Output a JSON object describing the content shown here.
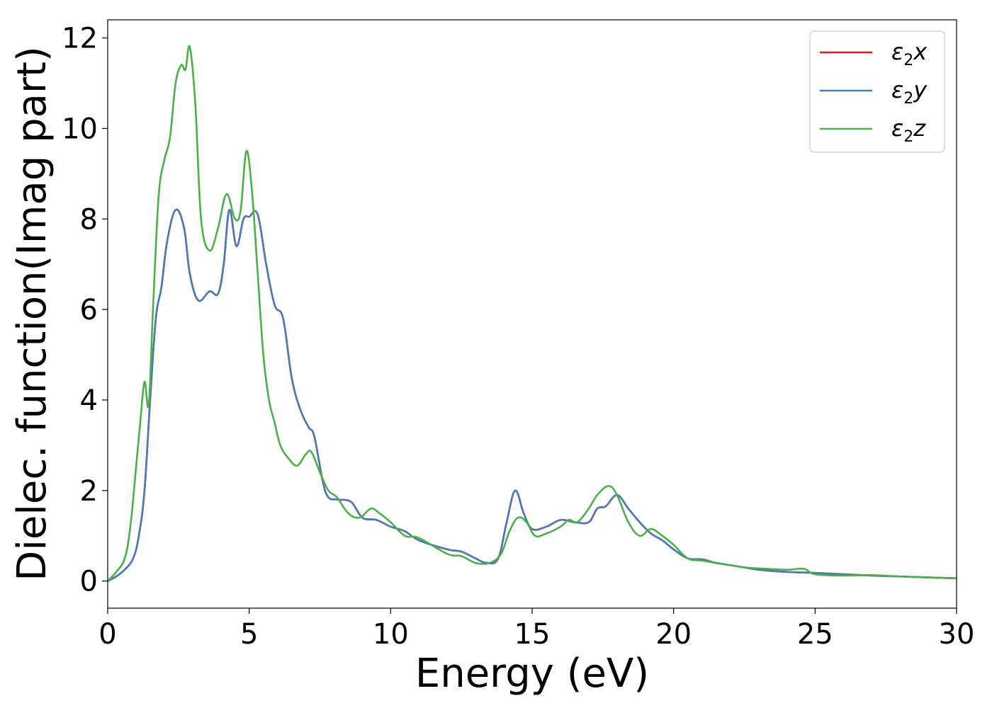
{
  "chart_data": {
    "type": "line",
    "title": "",
    "xlabel": "Energy (eV)",
    "ylabel": "Dielec. function(Imag part)",
    "xlim": [
      0,
      30
    ],
    "ylim": [
      -0.6,
      12.4
    ],
    "xticks": [
      0,
      5,
      10,
      15,
      20,
      25,
      30
    ],
    "yticks": [
      0,
      2,
      4,
      6,
      8,
      10,
      12
    ],
    "grid": false,
    "legend_position": "top-right",
    "series": [
      {
        "name": "ε₂x",
        "legend_sub": "2",
        "legend_var": "x",
        "color": "#e41a1c",
        "x": [
          0,
          0.3,
          0.6,
          0.9,
          1.1,
          1.3,
          1.5,
          1.7,
          1.9,
          2.1,
          2.4,
          2.7,
          2.9,
          3.2,
          3.6,
          3.9,
          4.1,
          4.3,
          4.55,
          4.8,
          5.0,
          5.3,
          5.6,
          5.9,
          6.2,
          6.5,
          6.8,
          7.1,
          7.3,
          7.6,
          7.8,
          8.1,
          8.6,
          9.0,
          9.5,
          10.0,
          10.5,
          11.0,
          12.0,
          12.5,
          13.0,
          13.4,
          13.8,
          14.1,
          14.4,
          14.7,
          15.0,
          15.5,
          16.0,
          16.5,
          17.0,
          17.3,
          17.6,
          18.0,
          18.4,
          18.8,
          19.2,
          19.6,
          20.0,
          20.5,
          21.0,
          21.5,
          22.0,
          22.5,
          23.0,
          24.0,
          25.0,
          26.0,
          27.0,
          28.0,
          29.0,
          30.0
        ],
        "values": [
          0,
          0.1,
          0.25,
          0.5,
          1.0,
          2.0,
          4.0,
          5.8,
          6.5,
          7.5,
          8.2,
          7.8,
          6.8,
          6.2,
          6.4,
          6.35,
          7.0,
          8.2,
          7.4,
          8.0,
          8.05,
          8.1,
          7.0,
          6.1,
          5.8,
          4.5,
          3.8,
          3.4,
          3.2,
          2.2,
          1.85,
          1.8,
          1.75,
          1.4,
          1.35,
          1.2,
          1.1,
          0.9,
          0.7,
          0.65,
          0.5,
          0.4,
          0.5,
          1.3,
          2.0,
          1.5,
          1.15,
          1.2,
          1.35,
          1.3,
          1.3,
          1.6,
          1.65,
          1.9,
          1.6,
          1.3,
          1.05,
          0.9,
          0.7,
          0.5,
          0.48,
          0.4,
          0.35,
          0.3,
          0.25,
          0.2,
          0.18,
          0.15,
          0.12,
          0.1,
          0.08,
          0.06
        ]
      },
      {
        "name": "ε₂y",
        "legend_sub": "2",
        "legend_var": "y",
        "color": "#4a7ab8",
        "x": [
          0,
          0.3,
          0.6,
          0.9,
          1.1,
          1.3,
          1.5,
          1.7,
          1.9,
          2.1,
          2.4,
          2.7,
          2.9,
          3.2,
          3.6,
          3.9,
          4.1,
          4.3,
          4.55,
          4.8,
          5.0,
          5.3,
          5.6,
          5.9,
          6.2,
          6.5,
          6.8,
          7.1,
          7.3,
          7.6,
          7.8,
          8.1,
          8.6,
          9.0,
          9.5,
          10.0,
          10.5,
          11.0,
          12.0,
          12.5,
          13.0,
          13.4,
          13.8,
          14.1,
          14.4,
          14.7,
          15.0,
          15.5,
          16.0,
          16.5,
          17.0,
          17.3,
          17.6,
          18.0,
          18.4,
          18.8,
          19.2,
          19.6,
          20.0,
          20.5,
          21.0,
          21.5,
          22.0,
          22.5,
          23.0,
          24.0,
          25.0,
          26.0,
          27.0,
          28.0,
          29.0,
          30.0
        ],
        "values": [
          0,
          0.1,
          0.25,
          0.5,
          1.0,
          2.0,
          4.0,
          5.8,
          6.5,
          7.5,
          8.2,
          7.8,
          6.8,
          6.2,
          6.4,
          6.35,
          7.0,
          8.2,
          7.4,
          8.0,
          8.05,
          8.1,
          7.0,
          6.1,
          5.8,
          4.5,
          3.8,
          3.4,
          3.2,
          2.2,
          1.85,
          1.8,
          1.75,
          1.4,
          1.35,
          1.2,
          1.1,
          0.9,
          0.7,
          0.65,
          0.5,
          0.4,
          0.5,
          1.3,
          2.0,
          1.5,
          1.15,
          1.2,
          1.35,
          1.3,
          1.3,
          1.6,
          1.65,
          1.9,
          1.6,
          1.3,
          1.05,
          0.9,
          0.7,
          0.5,
          0.48,
          0.4,
          0.35,
          0.3,
          0.25,
          0.2,
          0.18,
          0.15,
          0.12,
          0.1,
          0.08,
          0.06
        ]
      },
      {
        "name": "ε₂z",
        "legend_sub": "2",
        "legend_var": "z",
        "color": "#4daf4a",
        "x": [
          0,
          0.3,
          0.6,
          0.8,
          1.0,
          1.15,
          1.3,
          1.45,
          1.6,
          1.8,
          2.0,
          2.2,
          2.4,
          2.6,
          2.75,
          2.9,
          3.1,
          3.3,
          3.6,
          3.9,
          4.2,
          4.5,
          4.7,
          4.9,
          5.1,
          5.3,
          5.5,
          5.7,
          5.9,
          6.1,
          6.4,
          6.7,
          7.0,
          7.2,
          7.5,
          7.8,
          8.1,
          8.5,
          8.9,
          9.3,
          9.6,
          10.0,
          10.5,
          11.0,
          12.0,
          12.5,
          13.0,
          13.5,
          13.9,
          14.2,
          14.5,
          14.8,
          15.1,
          15.5,
          16.0,
          16.3,
          16.6,
          17.0,
          17.3,
          17.7,
          18.0,
          18.4,
          18.8,
          19.2,
          19.6,
          20.0,
          20.5,
          21.0,
          22.0,
          22.5,
          23.0,
          24.0,
          24.6,
          25.0,
          26.0,
          27.0,
          28.0,
          29.0,
          30.0
        ],
        "values": [
          0,
          0.2,
          0.5,
          1.2,
          2.5,
          3.5,
          4.4,
          3.9,
          6.0,
          8.5,
          9.3,
          9.8,
          11.0,
          11.4,
          11.3,
          11.8,
          10.5,
          8.0,
          7.3,
          7.8,
          8.55,
          8.0,
          8.2,
          9.5,
          8.6,
          6.8,
          5.0,
          4.0,
          3.5,
          3.0,
          2.7,
          2.55,
          2.8,
          2.85,
          2.4,
          2.0,
          1.85,
          1.5,
          1.4,
          1.6,
          1.5,
          1.3,
          1.0,
          0.95,
          0.6,
          0.55,
          0.4,
          0.4,
          0.6,
          1.1,
          1.4,
          1.3,
          1.0,
          1.05,
          1.2,
          1.35,
          1.3,
          1.6,
          1.9,
          2.1,
          1.9,
          1.3,
          1.0,
          1.15,
          1.0,
          0.8,
          0.5,
          0.45,
          0.35,
          0.3,
          0.28,
          0.25,
          0.27,
          0.15,
          0.12,
          0.13,
          0.1,
          0.08,
          0.06
        ]
      }
    ]
  }
}
